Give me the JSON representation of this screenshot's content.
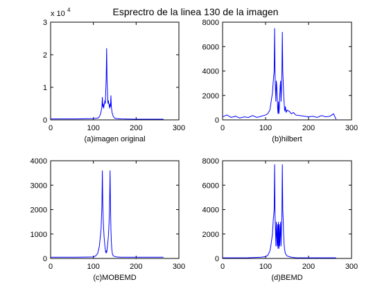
{
  "figure": {
    "title": "Esprectro de la linea 130 de la imagen",
    "line_color": "#0000ff"
  },
  "chart_data": [
    {
      "type": "line",
      "xlabel": "(a)imagen original",
      "ylabel": "",
      "xlim": [
        0,
        300
      ],
      "ylim": [
        0,
        30000
      ],
      "x_ticks": [
        "0",
        "100",
        "200",
        "300"
      ],
      "y_ticks": [
        "0",
        "1",
        "2",
        "3"
      ],
      "y_multiplier": "x 10",
      "y_multiplier_exponent": "4",
      "grid": false,
      "series": [
        {
          "x": [
            0,
            60,
            100,
            112,
            116,
            118,
            120,
            121,
            122,
            123,
            124,
            125,
            126,
            127,
            128,
            129,
            130,
            131,
            132,
            133,
            134,
            135,
            136,
            137,
            138,
            139,
            140,
            141,
            142,
            143,
            144,
            145,
            146,
            148,
            150,
            155,
            165,
            200,
            264
          ],
          "y": [
            300,
            300,
            400,
            600,
            1500,
            2500,
            4000,
            7000,
            4000,
            5000,
            3500,
            4500,
            5000,
            6000,
            5000,
            9000,
            13000,
            22000,
            12000,
            9000,
            5000,
            6000,
            5000,
            4500,
            3500,
            5000,
            4000,
            7500,
            4000,
            3000,
            2000,
            1800,
            1200,
            800,
            500,
            400,
            300,
            200,
            200
          ]
        }
      ]
    },
    {
      "type": "line",
      "xlabel": "(b)hilbert",
      "ylabel": "",
      "xlim": [
        0,
        300
      ],
      "ylim": [
        0,
        8000
      ],
      "x_ticks": [
        "0",
        "100",
        "200",
        "300"
      ],
      "y_ticks": [
        "0",
        "2000",
        "4000",
        "6000",
        "8000"
      ],
      "grid": false,
      "series": [
        {
          "x": [
            0,
            10,
            20,
            30,
            40,
            50,
            60,
            70,
            80,
            90,
            100,
            105,
            110,
            113,
            116,
            118,
            120,
            121,
            122,
            123,
            124,
            125,
            126,
            127,
            128,
            129,
            130,
            131,
            132,
            133,
            134,
            135,
            136,
            137,
            138,
            139,
            140,
            141,
            142,
            143,
            144,
            145,
            146,
            148,
            150,
            155,
            160,
            165,
            170,
            180,
            190,
            200,
            210,
            220,
            230,
            240,
            250,
            258,
            264
          ],
          "y": [
            250,
            400,
            200,
            300,
            150,
            250,
            200,
            350,
            200,
            300,
            400,
            500,
            800,
            1500,
            2200,
            3200,
            4000,
            7500,
            3800,
            2500,
            1500,
            3200,
            2800,
            2000,
            1000,
            500,
            1500,
            500,
            1000,
            2000,
            2800,
            3200,
            1500,
            2500,
            3800,
            7200,
            4000,
            3200,
            2200,
            1500,
            900,
            700,
            1100,
            600,
            800,
            700,
            500,
            600,
            400,
            350,
            300,
            250,
            300,
            200,
            350,
            250,
            300,
            500,
            50
          ]
        }
      ]
    },
    {
      "type": "line",
      "xlabel": "(c)MOBEMD",
      "ylabel": "",
      "xlim": [
        0,
        300
      ],
      "ylim": [
        0,
        4000
      ],
      "x_ticks": [
        "0",
        "100",
        "200",
        "300"
      ],
      "y_ticks": [
        "0",
        "1000",
        "2000",
        "3000",
        "4000"
      ],
      "grid": false,
      "series": [
        {
          "x": [
            0,
            60,
            100,
            105,
            110,
            114,
            118,
            120,
            121,
            122,
            123,
            124,
            125,
            126,
            127,
            128,
            129,
            130,
            131,
            132,
            133,
            134,
            135,
            136,
            137,
            138,
            139,
            140,
            141,
            142,
            143,
            144,
            145,
            147,
            150,
            155,
            165,
            200,
            264
          ],
          "y": [
            50,
            50,
            60,
            100,
            200,
            500,
            1200,
            2200,
            3600,
            2300,
            1600,
            1200,
            900,
            700,
            500,
            350,
            250,
            300,
            250,
            350,
            500,
            700,
            900,
            1200,
            1600,
            2300,
            3600,
            2200,
            1200,
            700,
            400,
            250,
            150,
            100,
            80,
            60,
            50,
            50,
            50
          ]
        }
      ]
    },
    {
      "type": "line",
      "xlabel": "(d)BEMD",
      "ylabel": "",
      "xlim": [
        0,
        300
      ],
      "ylim": [
        0,
        8000
      ],
      "x_ticks": [
        "0",
        "100",
        "200",
        "300"
      ],
      "y_ticks": [
        "0",
        "2000",
        "4000",
        "6000",
        "8000"
      ],
      "grid": false,
      "series": [
        {
          "x": [
            0,
            60,
            90,
            100,
            105,
            110,
            113,
            116,
            118,
            120,
            121,
            122,
            123,
            124,
            125,
            126,
            127,
            128,
            129,
            130,
            131,
            132,
            133,
            134,
            135,
            136,
            137,
            138,
            139,
            140,
            141,
            142,
            143,
            144,
            145,
            146,
            148,
            150,
            155,
            160,
            170,
            200,
            264
          ],
          "y": [
            50,
            60,
            100,
            150,
            250,
            600,
            1200,
            2000,
            3200,
            4000,
            7700,
            3500,
            2500,
            1000,
            3000,
            2000,
            1000,
            2800,
            800,
            3000,
            800,
            2800,
            1000,
            2000,
            3000,
            1000,
            2500,
            3500,
            7700,
            4000,
            3200,
            2000,
            1200,
            800,
            600,
            400,
            300,
            200,
            150,
            100,
            60,
            50,
            50
          ]
        }
      ]
    }
  ]
}
